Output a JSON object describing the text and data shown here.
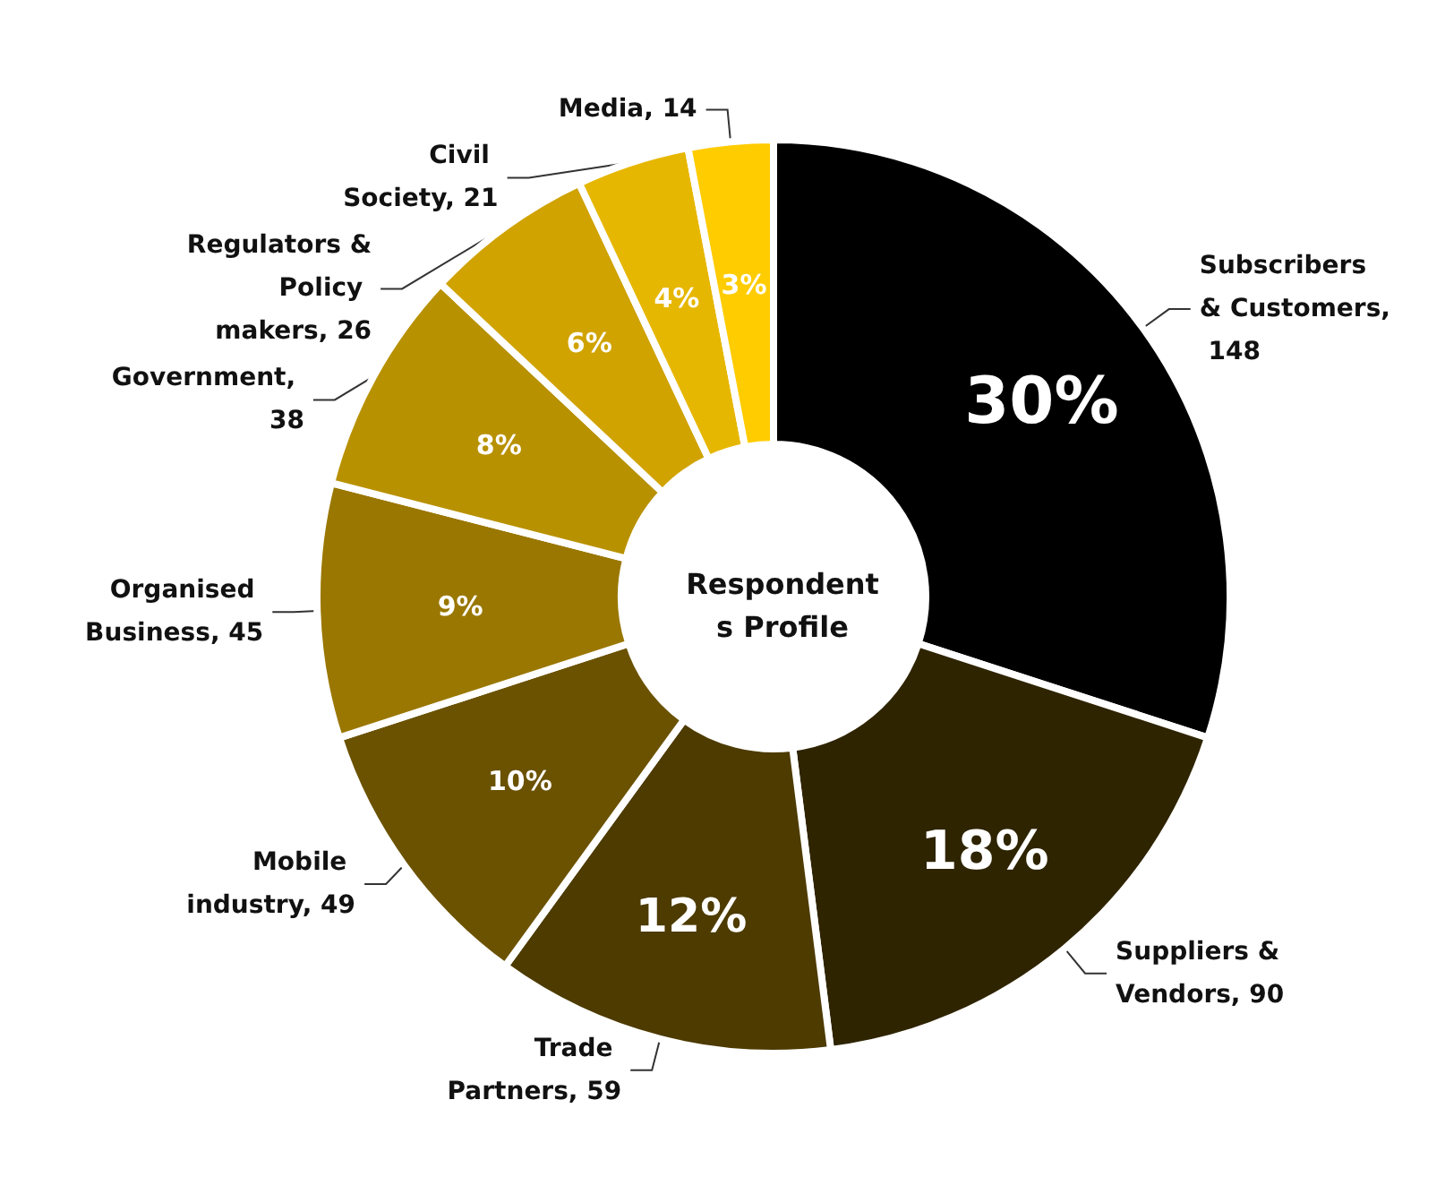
{
  "chart_data": {
    "type": "donut",
    "title": "Respondents Profile",
    "categories": [
      "Subscribers & Customers, 148",
      "Suppliers & Vendors, 90",
      "Trade Partners, 59",
      "Mobile industry, 49",
      "Organised Business, 45",
      "Government, 38",
      "Regulators & Policy makers, 26",
      "Civil Society, 21",
      "Media, 14"
    ],
    "values": [
      30,
      18,
      12,
      10,
      9,
      8,
      6,
      4,
      3
    ],
    "value_labels": [
      "30%",
      "18%",
      "12%",
      "10%",
      "9%",
      "8%",
      "6%",
      "4%",
      "3%"
    ],
    "colors": [
      "#000000",
      "#2f2400",
      "#4d3b00",
      "#6b5200",
      "#9a7700",
      "#b89100",
      "#d0a300",
      "#e6b700",
      "#ffcc00"
    ],
    "legend": false
  }
}
